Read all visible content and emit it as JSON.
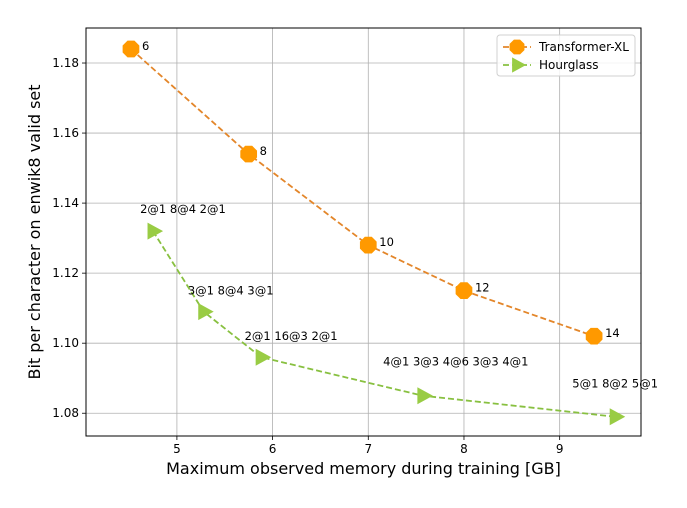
{
  "chart_data": {
    "type": "line",
    "title": "",
    "xlabel": "Maximum observed memory during training [GB]",
    "ylabel": "Bit per character on enwik8 valid set",
    "xlim": [
      4.05,
      9.85
    ],
    "ylim": [
      1.0735,
      1.19
    ],
    "xticks": [
      5,
      6,
      7,
      8,
      9
    ],
    "yticks": [
      1.08,
      1.1,
      1.12,
      1.14,
      1.16,
      1.18
    ],
    "ytick_labels": [
      "1.08",
      "1.10",
      "1.12",
      "1.14",
      "1.16",
      "1.18"
    ],
    "grid": true,
    "legend_position": "top-right",
    "series": [
      {
        "name": "Transformer-XL",
        "color": "#ff9900",
        "line_color": "#e3862a",
        "marker": "octagon",
        "points": [
          {
            "x": 4.52,
            "y": 1.184,
            "label": "6"
          },
          {
            "x": 5.75,
            "y": 1.154,
            "label": "8"
          },
          {
            "x": 7.0,
            "y": 1.128,
            "label": "10"
          },
          {
            "x": 8.0,
            "y": 1.115,
            "label": "12"
          },
          {
            "x": 9.36,
            "y": 1.102,
            "label": "14"
          }
        ]
      },
      {
        "name": "Hourglass",
        "color": "#99cc44",
        "line_color": "#88c040",
        "marker": "triangle-right",
        "points": [
          {
            "x": 4.75,
            "y": 1.132,
            "label": "2@1 8@4 2@1"
          },
          {
            "x": 5.28,
            "y": 1.109,
            "label": "3@1 8@4 3@1"
          },
          {
            "x": 5.88,
            "y": 1.096,
            "label": "2@1 16@3 2@1"
          },
          {
            "x": 7.57,
            "y": 1.085,
            "label": "4@1 3@3 4@6 3@3 4@1"
          },
          {
            "x": 9.58,
            "y": 1.079,
            "label": "5@1 8@2 5@1"
          }
        ]
      }
    ]
  }
}
